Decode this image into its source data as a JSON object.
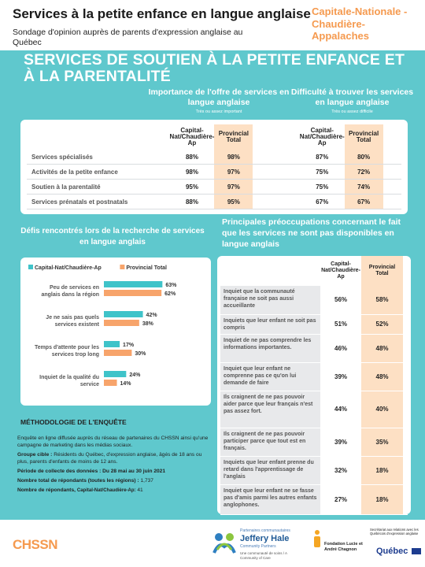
{
  "header": {
    "title": "Services à la petite enfance en langue anglaise",
    "subtitle": "Sondage d'opinion auprès de parents d'expression anglaise au Québec",
    "region": "Capitale-Nationale -Chaudière-Appalaches"
  },
  "banner": "SERVICES DE SOUTIEN À LA PETITE ENFANCE ET À LA PARENTALITÉ",
  "importance": {
    "heading1": "Importance de l'offre de services en langue anglaise",
    "note1": "Très ou assez important",
    "heading2": "Difficulté à trouver les services en langue anglaise",
    "note2": "Très ou assez difficile",
    "col_region": "Capital-Nat/Chaudière-Ap",
    "col_prov": "Provincial Total",
    "rows": [
      {
        "label": "Services spécialisés",
        "imp_reg": "88%",
        "imp_prov": "98%",
        "dif_reg": "87%",
        "dif_prov": "80%"
      },
      {
        "label": "Activités de la petite enfance",
        "imp_reg": "98%",
        "imp_prov": "97%",
        "dif_reg": "75%",
        "dif_prov": "72%"
      },
      {
        "label": "Soutien à la parentalité",
        "imp_reg": "95%",
        "imp_prov": "97%",
        "dif_reg": "75%",
        "dif_prov": "74%"
      },
      {
        "label": "Services prénatals et postnatals",
        "imp_reg": "88%",
        "imp_prov": "95%",
        "dif_reg": "67%",
        "dif_prov": "67%"
      }
    ]
  },
  "challenges": {
    "heading": "Défis rencontrés lors de la recherche de services en langue anglais"
  },
  "chart_data": {
    "type": "bar",
    "orientation": "horizontal",
    "categories": [
      "Peu de services en anglais dans la région",
      "Je ne sais pas quels services existent",
      "Temps d'attente pour les services trop long",
      "Inquiet de la qualité du service"
    ],
    "series": [
      {
        "name": "Capital-Nat/Chaudière-Ap",
        "values": [
          63,
          42,
          17,
          24
        ],
        "color": "#3fc3c9"
      },
      {
        "name": "Provincial Total",
        "values": [
          62,
          38,
          30,
          14
        ],
        "color": "#f7a46b"
      }
    ],
    "value_suffix": "%",
    "legend_position": "top",
    "xlim": [
      0,
      100
    ],
    "grid": false
  },
  "concerns": {
    "heading": "Principales préoccupations concernant le fait que les services ne sont pas disponibles en langue anglais",
    "col_region": "Capital-Nat/Chaudière-Ap",
    "col_prov": "Provincial Total",
    "rows": [
      {
        "label": "Inquiet que la communauté française ne soit pas aussi accueillante",
        "reg": "56%",
        "prov": "58%"
      },
      {
        "label": "Inquiets que leur enfant ne soit pas compris",
        "reg": "51%",
        "prov": "52%"
      },
      {
        "label": "Inquiet de ne pas comprendre les informations importantes.",
        "reg": "46%",
        "prov": "48%"
      },
      {
        "label": "Inquiet que leur enfant ne comprenne pas ce qu'on lui demande de faire",
        "reg": "39%",
        "prov": "48%"
      },
      {
        "label": "Ils craignent de ne pas pouvoir aider parce que leur français n'est pas assez fort.",
        "reg": "44%",
        "prov": "40%"
      },
      {
        "label": "Ils craignent de ne pas pouvoir participer parce que tout est en français.",
        "reg": "39%",
        "prov": "35%"
      },
      {
        "label": "Inquiets que leur enfant prenne du retard dans l'apprentissage de l'anglais",
        "reg": "32%",
        "prov": "18%"
      },
      {
        "label": "Inquiet que leur enfant ne se fasse pas d'amis parmi les autres enfants anglophones.",
        "reg": "27%",
        "prov": "18%"
      }
    ]
  },
  "methodology": {
    "title": "MÉTHODOLOGIE DE L'ENQUÊTE",
    "intro": "Enquête en ligne diffusée auprès du réseau de partenaires du CHSSN ainsi qu'une campagne de marketing dans les médias sociaux.",
    "target_label": "Groupe cible :",
    "target_text": "Résidents du Québec, d'expression anglaise, âgés de 18 ans ou plus, parents d'enfants de moins de 12 ans.",
    "period_label": "Période de collecte des données :",
    "period_text": "Du 28 mai au 30 juin 2021",
    "total_label": "Nombre total de répondants (toutes les régions) :",
    "total_value": "1,737",
    "region_label": "Nombre de répondants,",
    "region_name": "Capital-Nat/Chaudière-Ap:",
    "region_value": "41"
  },
  "footer": {
    "logo_chssn": "CHSSN",
    "partner_small": "Partenaires communautaires",
    "partner_name": "Jeffery Hale",
    "partner_sub": "Community Partners",
    "partner_tag": "Une communauté de soins / A Community of Care",
    "fondation": "Fondation Lucie et André Chagnon",
    "sec_text": "Secrétariat aux relations avec les Québécois d'expression anglaise",
    "quebec": "Québec"
  }
}
